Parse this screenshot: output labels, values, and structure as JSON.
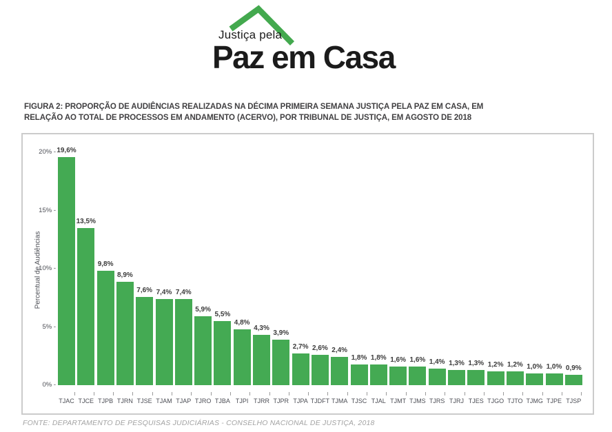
{
  "logo": {
    "small_text": "Justiça pela",
    "big_text": "Paz em Casa",
    "roof_icon": "house-roof-icon"
  },
  "figure": {
    "title_line1": "FIGURA 2: PROPORÇÃO DE AUDIÊNCIAS REALIZADAS NA DÉCIMA PRIMEIRA SEMANA JUSTIÇA PELA PAZ EM CASA, EM",
    "title_line2": "RELAÇÃO AO TOTAL DE PROCESSOS EM ANDAMENTO (ACERVO), POR TRIBUNAL DE JUSTIÇA, EM AGOSTO DE 2018"
  },
  "chart_data": {
    "type": "bar",
    "title": "Proporção de audiências realizadas na décima primeira semana Justiça pela Paz em Casa, em relação ao total de processos em andamento (acervo), por Tribunal de Justiça, em agosto de 2018",
    "categories": [
      "TJAC",
      "TJCE",
      "TJPB",
      "TJRN",
      "TJSE",
      "TJAM",
      "TJAP",
      "TJRO",
      "TJBA",
      "TJPI",
      "TJRR",
      "TJPR",
      "TJPA",
      "TJDFT",
      "TJMA",
      "TJSC",
      "TJAL",
      "TJMT",
      "TJMS",
      "TJRS",
      "TJRJ",
      "TJES",
      "TJGO",
      "TJTO",
      "TJMG",
      "TJPE",
      "TJSP"
    ],
    "values": [
      19.6,
      13.5,
      9.8,
      8.9,
      7.6,
      7.4,
      7.4,
      5.9,
      5.5,
      4.8,
      4.3,
      3.9,
      2.7,
      2.6,
      2.4,
      1.8,
      1.8,
      1.6,
      1.6,
      1.4,
      1.3,
      1.3,
      1.2,
      1.2,
      1.0,
      1.0,
      0.9
    ],
    "value_labels": [
      "19,6%",
      "13,5%",
      "9,8%",
      "8,9%",
      "7,6%",
      "7,4%",
      "7,4%",
      "5,9%",
      "5,5%",
      "4,8%",
      "4,3%",
      "3,9%",
      "2,7%",
      "2,6%",
      "2,4%",
      "1,8%",
      "1,8%",
      "1,6%",
      "1,6%",
      "1,4%",
      "1,3%",
      "1,3%",
      "1,2%",
      "1,2%",
      "1,0%",
      "1,0%",
      "0,9%"
    ],
    "xlabel": "",
    "ylabel": "Percentual de Audiências",
    "yticks": [
      0,
      5,
      10,
      15,
      20
    ],
    "ytick_suffix": "% -",
    "ylim": [
      0,
      20
    ],
    "grid": false,
    "legend": "none",
    "bar_color": "#44aa53"
  },
  "footer": {
    "source": "FONTE: DEPARTAMENTO DE PESQUISAS JUDICIÁRIAS - CONSELHO NACIONAL DE JUSTIÇA, 2018"
  },
  "colors": {
    "bar": "#44aa53",
    "logo_green": "#43a94e",
    "logo_text": "#1b1b1b",
    "frame_border": "#cbcbcb",
    "title_text": "#414042",
    "axis_text": "#4c4e55",
    "value_text": "#3b3b3b",
    "source_text": "#a3a3a3"
  }
}
